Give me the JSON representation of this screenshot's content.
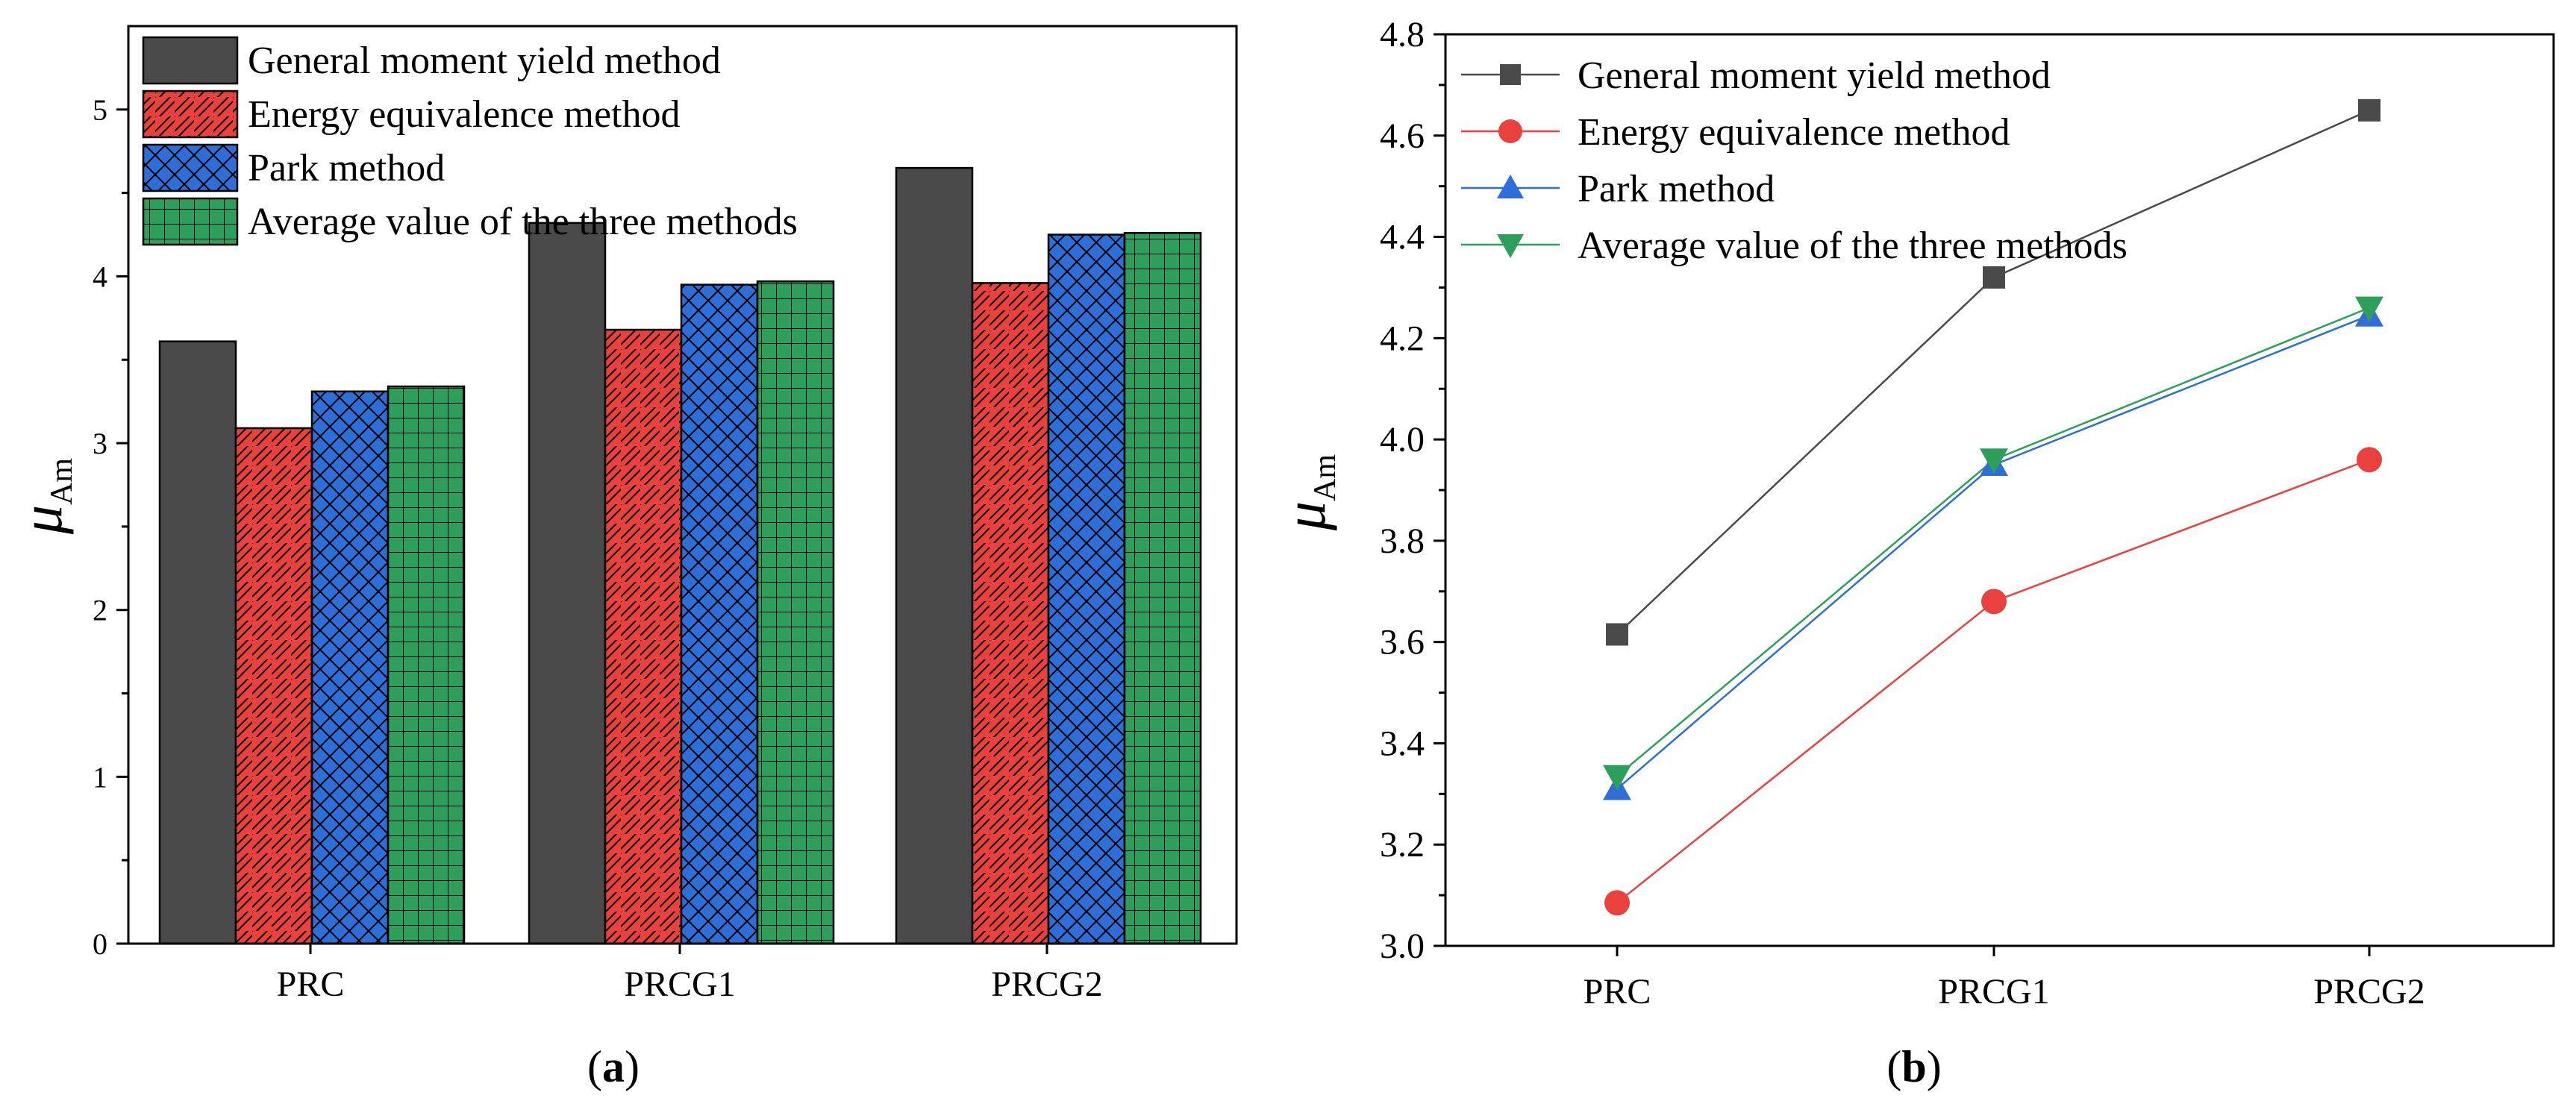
{
  "chart_data": [
    {
      "type": "bar",
      "panel_label": "a",
      "categories": [
        "PRC",
        "PRCG1",
        "PRCG2"
      ],
      "ylabel": "μ",
      "ylabel_sub": "Am",
      "ylim": [
        0,
        5.5
      ],
      "yticks": [
        "0",
        "1",
        "2",
        "3",
        "4",
        "5"
      ],
      "series": [
        {
          "name": "General moment yield method",
          "values": [
            3.61,
            4.32,
            4.65
          ],
          "color": "#4a4a4a",
          "pattern": "solid"
        },
        {
          "name": "Energy equivalence method",
          "values": [
            3.09,
            3.68,
            3.96
          ],
          "color": "#e8413e",
          "pattern": "diagonal"
        },
        {
          "name": "Park method",
          "values": [
            3.31,
            3.95,
            4.25
          ],
          "color": "#2f6ed6",
          "pattern": "crosshatch"
        },
        {
          "name": "Average value of the three methods",
          "values": [
            3.34,
            3.97,
            4.26
          ],
          "color": "#2e9e5b",
          "pattern": "grid"
        }
      ],
      "legend": "top-left"
    },
    {
      "type": "line",
      "panel_label": "b",
      "categories": [
        "PRC",
        "PRCG1",
        "PRCG2"
      ],
      "ylabel": "μ",
      "ylabel_sub": "Am",
      "ylim": [
        3.0,
        4.8
      ],
      "yticks": [
        "3.0",
        "3.2",
        "3.4",
        "3.6",
        "3.8",
        "4.0",
        "4.2",
        "4.4",
        "4.6",
        "4.8"
      ],
      "series": [
        {
          "name": "General moment yield method",
          "values": [
            3.615,
            4.32,
            4.65
          ],
          "color": "#4a4a4a",
          "marker": "square"
        },
        {
          "name": "Energy equivalence method",
          "values": [
            3.085,
            3.68,
            3.96
          ],
          "color": "#e8413e",
          "marker": "circle"
        },
        {
          "name": "Park method",
          "values": [
            3.31,
            3.95,
            4.245
          ],
          "color": "#2f6ed6",
          "marker": "triangle-up"
        },
        {
          "name": "Average value of the three methods",
          "values": [
            3.335,
            3.96,
            4.26
          ],
          "color": "#2e9e5b",
          "marker": "triangle-down"
        }
      ],
      "legend": "top-left"
    }
  ]
}
